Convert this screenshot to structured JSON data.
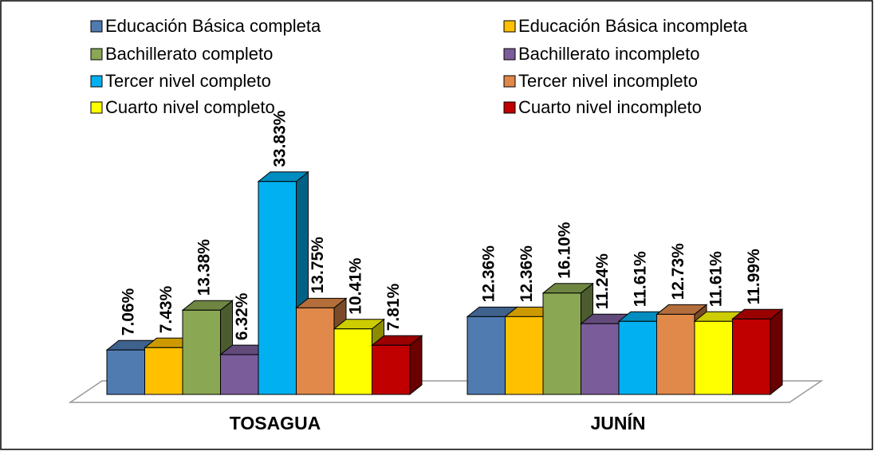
{
  "chart_data": {
    "type": "bar3d",
    "categories": [
      "TOSAGUA",
      "JUNÍN"
    ],
    "legend": "top",
    "series": [
      {
        "name": "Educación Básica completa",
        "color": "#4f7bb0",
        "values": [
          7.06,
          12.36
        ],
        "value_labels": [
          "7.06%",
          "12.36%"
        ]
      },
      {
        "name": "Educación Básica incompleta",
        "color": "#ffc000",
        "values": [
          7.43,
          12.36
        ],
        "value_labels": [
          "7.43%",
          "12.36%"
        ]
      },
      {
        "name": "Bachillerato completo",
        "color": "#8aa753",
        "values": [
          13.38,
          16.1
        ],
        "value_labels": [
          "13.38%",
          "16.10%"
        ]
      },
      {
        "name": "Bachillerato incompleto",
        "color": "#7b5c9a",
        "values": [
          6.32,
          11.24
        ],
        "value_labels": [
          "6.32%",
          "11.24%"
        ]
      },
      {
        "name": "Tercer nivel completo",
        "color": "#00b0f0",
        "values": [
          33.83,
          11.61
        ],
        "value_labels": [
          "33.83%",
          "11.61%"
        ]
      },
      {
        "name": "Tercer nivel incompleto",
        "color": "#e0894a",
        "values": [
          13.75,
          12.73
        ],
        "value_labels": [
          "13.75%",
          "12.73%"
        ]
      },
      {
        "name": "Cuarto nivel completo",
        "color": "#ffff00",
        "values": [
          10.41,
          11.61
        ],
        "value_labels": [
          "10.41%",
          "11.61%"
        ]
      },
      {
        "name": "Cuarto nivel incompleto",
        "color": "#c00000",
        "values": [
          7.81,
          11.99
        ],
        "value_labels": [
          "7.81%",
          "11.99%"
        ]
      }
    ]
  }
}
